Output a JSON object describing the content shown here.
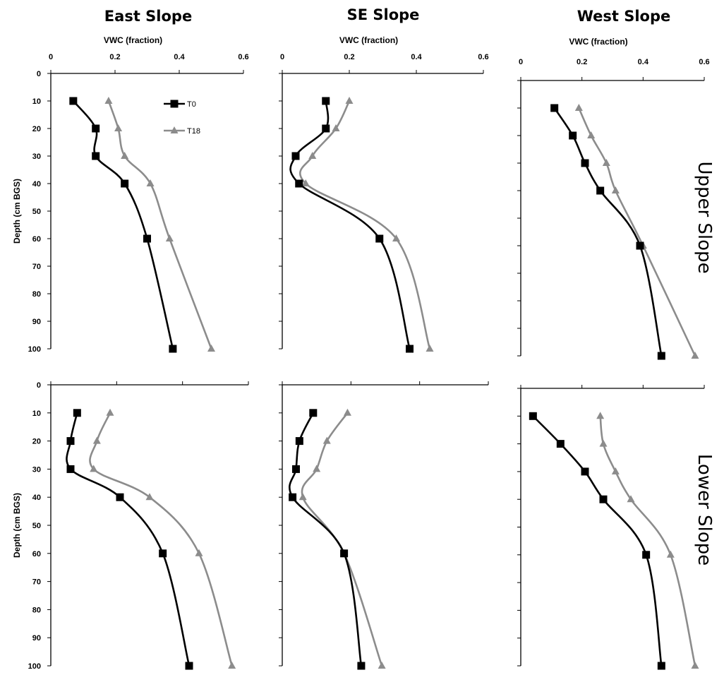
{
  "figure": {
    "column_titles": [
      "East Slope",
      "SE Slope",
      "West Slope"
    ],
    "row_titles": [
      "Upper Slope",
      "Lower Slope"
    ],
    "x_axis_title": "VWC (fraction)",
    "y_axis_title": "Depth (cm BGS)",
    "legend": [
      "T0",
      "T18"
    ]
  },
  "colors": {
    "T0": "#000000",
    "T18": "#8c8c8c",
    "axis": "#000000"
  },
  "markers": {
    "T0": "square",
    "T18": "triangle"
  },
  "chart_data": [
    {
      "type": "line",
      "title": "East Slope",
      "row": "Upper Slope",
      "xlabel": "VWC (fraction)",
      "ylabel": "Depth (cm BGS)",
      "x_axis_position": "top",
      "xlim": [
        0,
        0.6
      ],
      "ylim": [
        0,
        100
      ],
      "xticks": [
        "0",
        "0.2",
        "0.4",
        "0.6"
      ],
      "yticks": [
        "0",
        "10",
        "20",
        "30",
        "40",
        "50",
        "60",
        "70",
        "80",
        "90",
        "100"
      ],
      "legend_position": "top-right",
      "grid": false,
      "series": [
        {
          "name": "T0",
          "x": [
            0.07,
            0.14,
            0.14,
            0.23,
            0.3,
            0.38
          ],
          "y": [
            10,
            20,
            30,
            40,
            60,
            100
          ]
        },
        {
          "name": "T18",
          "x": [
            0.18,
            0.21,
            0.23,
            0.31,
            0.37,
            0.5
          ],
          "y": [
            10,
            20,
            30,
            40,
            60,
            100
          ]
        }
      ]
    },
    {
      "type": "line",
      "title": "SE Slope",
      "row": "Upper Slope",
      "xlabel": "VWC (fraction)",
      "ylabel": "",
      "x_axis_position": "top",
      "xlim": [
        0,
        0.6
      ],
      "ylim": [
        0,
        100
      ],
      "xticks": [
        "0",
        "0.2",
        "0.4",
        "0.6"
      ],
      "yticks": [],
      "grid": false,
      "series": [
        {
          "name": "T0",
          "x": [
            0.13,
            0.13,
            0.04,
            0.05,
            0.29,
            0.38
          ],
          "y": [
            10,
            20,
            30,
            40,
            60,
            100
          ]
        },
        {
          "name": "T18",
          "x": [
            0.2,
            0.16,
            0.09,
            0.07,
            0.34,
            0.44
          ],
          "y": [
            10,
            20,
            30,
            40,
            60,
            100
          ]
        }
      ]
    },
    {
      "type": "line",
      "title": "West Slope",
      "row": "Upper Slope",
      "xlabel": "VWC (fraction)",
      "ylabel": "",
      "x_axis_position": "top",
      "xlim": [
        0,
        0.6
      ],
      "ylim": [
        0,
        100
      ],
      "xticks": [
        "0",
        "0.2",
        "0.4",
        "0.6"
      ],
      "yticks": [],
      "grid": false,
      "series": [
        {
          "name": "T0",
          "x": [
            0.11,
            0.17,
            0.21,
            0.26,
            0.39,
            0.46
          ],
          "y": [
            10,
            20,
            30,
            40,
            60,
            100
          ]
        },
        {
          "name": "T18",
          "x": [
            0.19,
            0.23,
            0.28,
            0.31,
            0.4,
            0.57
          ],
          "y": [
            10,
            20,
            30,
            40,
            60,
            100
          ]
        }
      ]
    },
    {
      "type": "line",
      "title": "East Slope",
      "row": "Lower Slope",
      "xlabel": "",
      "ylabel": "Depth (cm BGS)",
      "x_axis_position": "top",
      "xlim": [
        0,
        0.6
      ],
      "ylim": [
        0,
        100
      ],
      "xticks": [],
      "yticks": [
        "0",
        "10",
        "20",
        "30",
        "40",
        "50",
        "60",
        "70",
        "80",
        "90",
        "100"
      ],
      "grid": false,
      "series": [
        {
          "name": "T0",
          "x": [
            0.08,
            0.06,
            0.06,
            0.21,
            0.34,
            0.42
          ],
          "y": [
            10,
            20,
            30,
            40,
            60,
            100
          ]
        },
        {
          "name": "T18",
          "x": [
            0.18,
            0.14,
            0.13,
            0.3,
            0.45,
            0.55
          ],
          "y": [
            10,
            20,
            30,
            40,
            60,
            100
          ]
        }
      ]
    },
    {
      "type": "line",
      "title": "SE Slope",
      "row": "Lower Slope",
      "xlabel": "",
      "ylabel": "",
      "x_axis_position": "top",
      "xlim": [
        0,
        0.6
      ],
      "ylim": [
        0,
        100
      ],
      "xticks": [],
      "yticks": [],
      "grid": false,
      "series": [
        {
          "name": "T0",
          "x": [
            0.09,
            0.05,
            0.04,
            0.03,
            0.18,
            0.23
          ],
          "y": [
            10,
            20,
            30,
            40,
            60,
            100
          ]
        },
        {
          "name": "T18",
          "x": [
            0.19,
            0.13,
            0.1,
            0.06,
            0.18,
            0.29
          ],
          "y": [
            10,
            20,
            30,
            40,
            60,
            100
          ]
        }
      ]
    },
    {
      "type": "line",
      "title": "West Slope",
      "row": "Lower Slope",
      "xlabel": "",
      "ylabel": "",
      "x_axis_position": "top",
      "xlim": [
        0,
        0.6
      ],
      "ylim": [
        0,
        100
      ],
      "xticks": [],
      "yticks": [],
      "grid": false,
      "series": [
        {
          "name": "T0",
          "x": [
            0.04,
            0.13,
            0.21,
            0.27,
            0.41,
            0.46
          ],
          "y": [
            10,
            20,
            30,
            40,
            60,
            100
          ]
        },
        {
          "name": "T18",
          "x": [
            0.26,
            0.27,
            0.31,
            0.36,
            0.49,
            0.57
          ],
          "y": [
            10,
            20,
            30,
            40,
            60,
            100
          ]
        }
      ]
    }
  ]
}
